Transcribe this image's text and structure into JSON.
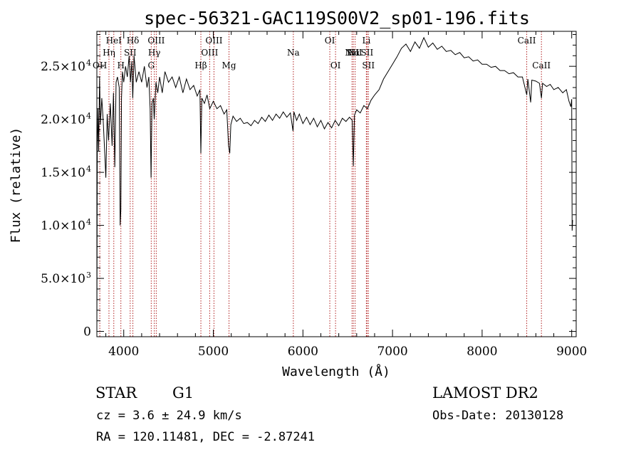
{
  "chart_data": {
    "type": "line",
    "title": "spec-56321-GAC119S00V2_sp01-196.fits",
    "xlabel": "Wavelength (Å)",
    "ylabel": "Flux (relative)",
    "xlim": [
      3700,
      9050
    ],
    "ylim": [
      -500,
      28300
    ],
    "x_ticks": [
      {
        "v": 4000,
        "label": "4000"
      },
      {
        "v": 5000,
        "label": "5000"
      },
      {
        "v": 6000,
        "label": "6000"
      },
      {
        "v": 7000,
        "label": "7000"
      },
      {
        "v": 8000,
        "label": "8000"
      },
      {
        "v": 9000,
        "label": "9000"
      }
    ],
    "y_ticks": [
      {
        "v": 0,
        "label": "0"
      },
      {
        "v": 5000,
        "label": "5.0×10",
        "exp": "3"
      },
      {
        "v": 10000,
        "label": "1.0×10",
        "exp": "4"
      },
      {
        "v": 15000,
        "label": "1.5×10",
        "exp": "4"
      },
      {
        "v": 20000,
        "label": "2.0×10",
        "exp": "4"
      },
      {
        "v": 25000,
        "label": "2.5×10",
        "exp": "4"
      }
    ],
    "series": [
      {
        "color": "#000000",
        "points": [
          [
            3700,
            0
          ],
          [
            3705,
            17000
          ],
          [
            3712,
            21000
          ],
          [
            3720,
            17000
          ],
          [
            3730,
            24000
          ],
          [
            3740,
            19500
          ],
          [
            3755,
            22000
          ],
          [
            3770,
            20000
          ],
          [
            3790,
            16500
          ],
          [
            3800,
            14500
          ],
          [
            3815,
            20500
          ],
          [
            3830,
            18000
          ],
          [
            3850,
            21500
          ],
          [
            3870,
            17500
          ],
          [
            3885,
            22500
          ],
          [
            3900,
            15500
          ],
          [
            3915,
            23500
          ],
          [
            3930,
            24000
          ],
          [
            3950,
            23000
          ],
          [
            3960,
            10000
          ],
          [
            3968,
            11500
          ],
          [
            3975,
            22000
          ],
          [
            3985,
            24500
          ],
          [
            4000,
            23500
          ],
          [
            4020,
            25000
          ],
          [
            4040,
            24000
          ],
          [
            4060,
            26000
          ],
          [
            4075,
            23500
          ],
          [
            4090,
            25500
          ],
          [
            4101,
            22000
          ],
          [
            4115,
            26000
          ],
          [
            4140,
            23500
          ],
          [
            4170,
            24500
          ],
          [
            4200,
            23500
          ],
          [
            4230,
            25000
          ],
          [
            4260,
            23000
          ],
          [
            4280,
            24000
          ],
          [
            4295,
            21000
          ],
          [
            4305,
            14500
          ],
          [
            4315,
            21500
          ],
          [
            4330,
            22000
          ],
          [
            4340,
            20000
          ],
          [
            4360,
            23500
          ],
          [
            4380,
            22500
          ],
          [
            4400,
            24000
          ],
          [
            4430,
            22500
          ],
          [
            4460,
            24500
          ],
          [
            4500,
            23500
          ],
          [
            4540,
            24000
          ],
          [
            4580,
            23000
          ],
          [
            4620,
            24000
          ],
          [
            4660,
            22500
          ],
          [
            4700,
            23800
          ],
          [
            4740,
            22800
          ],
          [
            4780,
            23200
          ],
          [
            4820,
            22200
          ],
          [
            4850,
            22800
          ],
          [
            4861,
            16800
          ],
          [
            4872,
            22000
          ],
          [
            4900,
            21500
          ],
          [
            4930,
            22300
          ],
          [
            4960,
            21000
          ],
          [
            5000,
            21700
          ],
          [
            5040,
            21000
          ],
          [
            5080,
            21300
          ],
          [
            5120,
            20500
          ],
          [
            5150,
            20900
          ],
          [
            5170,
            17500
          ],
          [
            5183,
            16800
          ],
          [
            5195,
            19500
          ],
          [
            5220,
            20300
          ],
          [
            5260,
            19800
          ],
          [
            5300,
            20100
          ],
          [
            5340,
            19600
          ],
          [
            5380,
            19700
          ],
          [
            5420,
            19400
          ],
          [
            5460,
            19900
          ],
          [
            5500,
            19600
          ],
          [
            5540,
            20200
          ],
          [
            5580,
            19800
          ],
          [
            5620,
            20400
          ],
          [
            5660,
            19900
          ],
          [
            5700,
            20500
          ],
          [
            5740,
            20100
          ],
          [
            5780,
            20700
          ],
          [
            5820,
            20200
          ],
          [
            5860,
            20600
          ],
          [
            5889,
            18900
          ],
          [
            5900,
            20700
          ],
          [
            5930,
            19900
          ],
          [
            5960,
            20500
          ],
          [
            6000,
            19600
          ],
          [
            6040,
            20200
          ],
          [
            6080,
            19500
          ],
          [
            6120,
            20100
          ],
          [
            6160,
            19300
          ],
          [
            6200,
            19900
          ],
          [
            6240,
            19100
          ],
          [
            6280,
            19700
          ],
          [
            6320,
            19200
          ],
          [
            6360,
            19900
          ],
          [
            6400,
            19400
          ],
          [
            6440,
            20100
          ],
          [
            6480,
            19800
          ],
          [
            6520,
            20200
          ],
          [
            6550,
            19900
          ],
          [
            6563,
            15600
          ],
          [
            6575,
            20400
          ],
          [
            6600,
            20900
          ],
          [
            6640,
            20600
          ],
          [
            6680,
            21300
          ],
          [
            6720,
            21000
          ],
          [
            6760,
            21800
          ],
          [
            6800,
            22300
          ],
          [
            6850,
            22800
          ],
          [
            6900,
            23800
          ],
          [
            6950,
            24500
          ],
          [
            7000,
            25200
          ],
          [
            7050,
            25900
          ],
          [
            7100,
            26700
          ],
          [
            7150,
            27100
          ],
          [
            7200,
            26400
          ],
          [
            7250,
            27300
          ],
          [
            7300,
            26700
          ],
          [
            7350,
            27700
          ],
          [
            7400,
            26800
          ],
          [
            7450,
            27200
          ],
          [
            7500,
            26600
          ],
          [
            7550,
            26900
          ],
          [
            7600,
            26400
          ],
          [
            7650,
            26500
          ],
          [
            7700,
            26100
          ],
          [
            7750,
            26300
          ],
          [
            7800,
            25800
          ],
          [
            7850,
            25900
          ],
          [
            7900,
            25500
          ],
          [
            7950,
            25600
          ],
          [
            8000,
            25200
          ],
          [
            8050,
            25200
          ],
          [
            8100,
            24900
          ],
          [
            8150,
            25000
          ],
          [
            8200,
            24600
          ],
          [
            8250,
            24600
          ],
          [
            8300,
            24300
          ],
          [
            8350,
            24400
          ],
          [
            8400,
            24000
          ],
          [
            8450,
            24000
          ],
          [
            8498,
            22300
          ],
          [
            8510,
            23800
          ],
          [
            8542,
            21600
          ],
          [
            8555,
            23700
          ],
          [
            8600,
            23600
          ],
          [
            8640,
            23400
          ],
          [
            8662,
            22000
          ],
          [
            8675,
            23400
          ],
          [
            8720,
            23100
          ],
          [
            8760,
            23300
          ],
          [
            8800,
            22800
          ],
          [
            8850,
            23000
          ],
          [
            8900,
            22500
          ],
          [
            8940,
            22800
          ],
          [
            8970,
            21700
          ],
          [
            8990,
            21200
          ],
          [
            9000,
            21900
          ],
          [
            9005,
            9500
          ],
          [
            9010,
            10500
          ]
        ]
      }
    ],
    "lines": [
      {
        "x": 3733,
        "label": "OH",
        "row": 3
      },
      {
        "x": 3835,
        "label": "Hη",
        "row": 2
      },
      {
        "x": 3889,
        "label": "HeI",
        "row": 1
      },
      {
        "x": 3968,
        "label": "H",
        "row": 3
      },
      {
        "x": 4072,
        "label": "SII",
        "row": 2
      },
      {
        "x": 4102,
        "label": "Hδ",
        "row": 1
      },
      {
        "x": 4307,
        "label": "G",
        "row": 3
      },
      {
        "x": 4341,
        "label": "Hγ",
        "row": 2
      },
      {
        "x": 4363,
        "label": "OIII",
        "row": 1
      },
      {
        "x": 4861,
        "label": "Hβ",
        "row": 3
      },
      {
        "x": 4959,
        "label": "OIII",
        "row": 2
      },
      {
        "x": 5007,
        "label": "OIII",
        "row": 1
      },
      {
        "x": 5175,
        "label": "Mg",
        "row": 3
      },
      {
        "x": 5893,
        "label": "Na",
        "row": 2
      },
      {
        "x": 6300,
        "label": "OI",
        "row": 1
      },
      {
        "x": 6364,
        "label": "OI",
        "row": 3
      },
      {
        "x": 6548,
        "label": "NII",
        "row": 2
      },
      {
        "x": 6563,
        "label": "Hα",
        "row": 2
      },
      {
        "x": 6583,
        "label": "NII",
        "row": 2
      },
      {
        "x": 6708,
        "label": "Li",
        "row": 1
      },
      {
        "x": 6716,
        "label": "SII",
        "row": 2
      },
      {
        "x": 6731,
        "label": "SII",
        "row": 3
      },
      {
        "x": 8498,
        "label": "CaII",
        "row": 1
      },
      {
        "x": 8662,
        "label": "CaII",
        "row": 3
      }
    ]
  },
  "info": {
    "object_class": "STAR",
    "subclass": "G1",
    "survey": "LAMOST DR2",
    "cz": "cz = 3.6 ± 24.9 km/s",
    "obs_date": "Obs-Date: 20130128",
    "coords": "RA = 120.11481, DEC =  -2.87241"
  }
}
